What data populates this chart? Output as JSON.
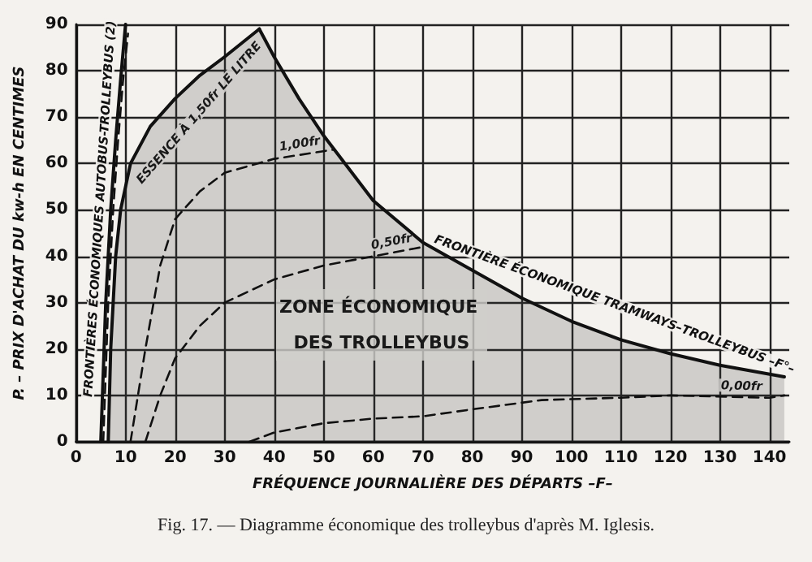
{
  "chart_data": {
    "type": "line",
    "title": "Fig. 17. — Diagramme économique des trolleybus d'après M. Iglesis.",
    "xlabel": "FRÉQUENCE JOURNALIÈRE DES DÉPARTS –F–",
    "ylabel": "P. – PRIX D'ACHAT DU kw-h EN CENTIMES",
    "xlim": [
      0,
      144
    ],
    "xticks": [
      0,
      10,
      20,
      30,
      40,
      50,
      60,
      70,
      80,
      90,
      100,
      110,
      120,
      130,
      140
    ],
    "ylim": [
      0,
      90
    ],
    "yticks": [
      0,
      10,
      20,
      30,
      40,
      50,
      60,
      70,
      80,
      90
    ],
    "grid": true,
    "legend": false,
    "marker": "none",
    "series": [
      {
        "name": "FRONTIÈRES ÉCONOMIQUES AUTOBUS-TROLLEYBUS (2)",
        "line_style": "solid",
        "color": "#111111",
        "x": [
          5,
          6,
          7,
          8,
          9,
          10
        ],
        "values": [
          0,
          30,
          50,
          65,
          78,
          90
        ]
      },
      {
        "line_style": "dashed",
        "color": "#111111",
        "x": [
          5.5,
          6.5,
          7.5,
          8.5,
          9.5,
          10.5
        ],
        "values": [
          0,
          30,
          50,
          65,
          78,
          88
        ]
      },
      {
        "name": "ESSENCE À 1,50fr LE LITRE",
        "type": "area",
        "line_style": "solid",
        "color": "#111111",
        "x": [
          6.5,
          7,
          8,
          9,
          11,
          15,
          20,
          25,
          30,
          37
        ],
        "values": [
          0,
          20,
          40,
          50,
          60,
          68,
          74,
          79,
          83,
          89
        ]
      },
      {
        "name": "FRONTIÈRE ÉCONOMIQUE TRAMWAYS–TROLLEYBUS –F°–",
        "type": "area",
        "line_style": "solid",
        "color": "#111111",
        "x": [
          37,
          40,
          45,
          50,
          55,
          60,
          70,
          80,
          90,
          100,
          110,
          120,
          130,
          143
        ],
        "values": [
          89,
          83,
          74,
          66,
          59,
          52,
          43,
          37,
          31,
          26,
          22,
          19,
          16.5,
          14
        ]
      },
      {
        "name": "1,00fr",
        "line_style": "dashed",
        "color": "#111111",
        "x": [
          11,
          14,
          17,
          20,
          25,
          30,
          40,
          52
        ],
        "values": [
          0,
          20,
          38,
          48,
          54,
          58,
          61,
          63
        ]
      },
      {
        "name": "0,50fr",
        "line_style": "dashed",
        "color": "#111111",
        "x": [
          14,
          17,
          20,
          25,
          30,
          40,
          50,
          60,
          70
        ],
        "values": [
          0,
          10,
          18,
          25,
          30,
          35,
          38,
          40,
          42
        ]
      },
      {
        "name": "0,00fr",
        "line_style": "dashed",
        "color": "#111111",
        "x": [
          35,
          40,
          50,
          60,
          70,
          80,
          94,
          110,
          120,
          140,
          143
        ],
        "values": [
          0,
          2,
          4,
          5,
          5.5,
          7,
          9,
          9.5,
          10,
          9.5,
          10
        ]
      }
    ],
    "annotations": [
      "ZONE ÉCONOMIQUE DES TROLLEYBUS"
    ]
  }
}
